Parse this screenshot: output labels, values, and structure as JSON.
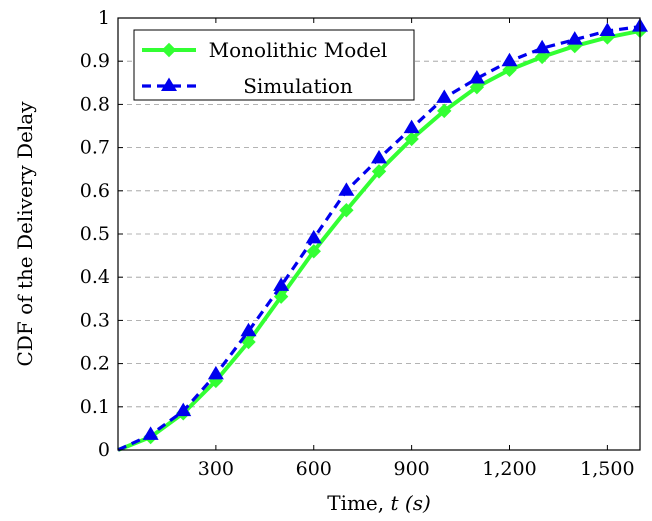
{
  "chart_data": {
    "type": "line",
    "xlabel_prefix": "Time, ",
    "xlabel_var": "t (s)",
    "ylabel": "CDF of the Delivery Delay",
    "xlim": [
      0,
      1600
    ],
    "ylim": [
      0,
      1
    ],
    "x_ticks": [
      300,
      600,
      900,
      1200,
      1500
    ],
    "x_tick_labels": [
      "300",
      "600",
      "900",
      "1,200",
      "1,500"
    ],
    "y_ticks": [
      0,
      0.1,
      0.2,
      0.3,
      0.4,
      0.5,
      0.6,
      0.7,
      0.8,
      0.9,
      1
    ],
    "y_tick_labels": [
      "0",
      "0.1",
      "0.2",
      "0.3",
      "0.4",
      "0.5",
      "0.6",
      "0.7",
      "0.8",
      "0.9",
      "1"
    ],
    "grid": "horizontal dashed",
    "legend_position": "top-left",
    "x": [
      0,
      100,
      200,
      300,
      400,
      500,
      600,
      700,
      800,
      900,
      1000,
      1100,
      1200,
      1300,
      1400,
      1500,
      1600
    ],
    "series": [
      {
        "name": "Monolithic Model",
        "color": "#33ff33",
        "marker": "diamond",
        "line": "solid",
        "values": [
          0,
          0.03,
          0.085,
          0.16,
          0.25,
          0.355,
          0.46,
          0.555,
          0.645,
          0.72,
          0.785,
          0.84,
          0.88,
          0.91,
          0.935,
          0.955,
          0.97
        ]
      },
      {
        "name": "Simulation",
        "color": "#0000ee",
        "marker": "triangle",
        "line": "dashed",
        "values": [
          0,
          0.035,
          0.09,
          0.175,
          0.275,
          0.38,
          0.49,
          0.6,
          0.675,
          0.745,
          0.815,
          0.86,
          0.9,
          0.93,
          0.95,
          0.97,
          0.98
        ]
      }
    ]
  }
}
